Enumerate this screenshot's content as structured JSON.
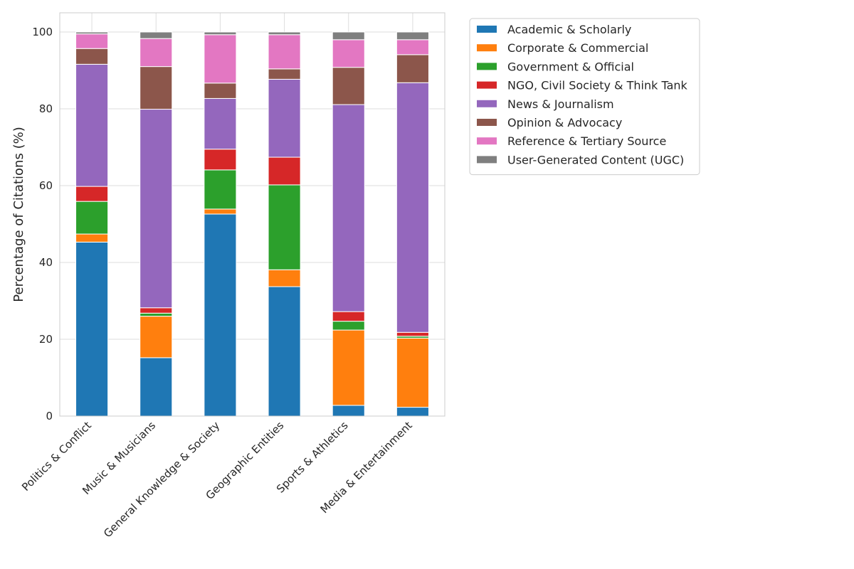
{
  "chart_data": {
    "type": "bar",
    "stacked": true,
    "title": "",
    "xlabel": "",
    "ylabel": "Percentage of Citations (%)",
    "ylim": [
      0,
      105
    ],
    "yticks": [
      0,
      20,
      40,
      60,
      80,
      100
    ],
    "grid": true,
    "legend_position": "outside-top-right",
    "categories": [
      "Politics & Conflict",
      "Music & Musicians",
      "General Knowledge & Society",
      "Geographic Entities",
      "Sports & Athletics",
      "Media & Entertainment"
    ],
    "series": [
      {
        "name": "Academic & Scholarly",
        "color": "#1f77b4",
        "values": [
          45.3,
          15.2,
          52.6,
          33.7,
          2.8,
          2.3
        ]
      },
      {
        "name": "Corporate & Commercial",
        "color": "#ff7f0e",
        "values": [
          2.1,
          10.8,
          1.3,
          4.4,
          19.6,
          18.0
        ]
      },
      {
        "name": "Government & Official",
        "color": "#2ca02c",
        "values": [
          8.5,
          0.8,
          10.2,
          22.1,
          2.3,
          0.5
        ]
      },
      {
        "name": "NGO, Civil Society & Think Tank",
        "color": "#d62728",
        "values": [
          3.9,
          1.4,
          5.4,
          7.2,
          2.5,
          1.0
        ]
      },
      {
        "name": "News & Journalism",
        "color": "#9467bd",
        "values": [
          31.8,
          51.7,
          13.2,
          20.3,
          53.9,
          65.0
        ]
      },
      {
        "name": "Opinion & Advocacy",
        "color": "#8c564b",
        "values": [
          4.1,
          11.1,
          4.0,
          2.7,
          9.7,
          7.3
        ]
      },
      {
        "name": "Reference & Tertiary Source",
        "color": "#e377c2",
        "values": [
          3.8,
          7.3,
          12.6,
          8.9,
          7.2,
          3.9
        ]
      },
      {
        "name": "User-Generated Content (UGC)",
        "color": "#7f7f7f",
        "values": [
          0.5,
          1.7,
          0.7,
          0.7,
          2.0,
          2.0
        ]
      }
    ]
  }
}
